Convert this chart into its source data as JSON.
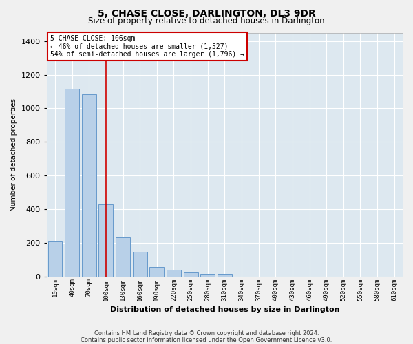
{
  "title": "5, CHASE CLOSE, DARLINGTON, DL3 9DR",
  "subtitle": "Size of property relative to detached houses in Darlington",
  "xlabel": "Distribution of detached houses by size in Darlington",
  "ylabel": "Number of detached properties",
  "footer_line1": "Contains HM Land Registry data © Crown copyright and database right 2024.",
  "footer_line2": "Contains public sector information licensed under the Open Government Licence v3.0.",
  "annotation_title": "5 CHASE CLOSE: 106sqm",
  "annotation_line1": "← 46% of detached houses are smaller (1,527)",
  "annotation_line2": "54% of semi-detached houses are larger (1,796) →",
  "bar_categories": [
    "10sqm",
    "40sqm",
    "70sqm",
    "100sqm",
    "130sqm",
    "160sqm",
    "190sqm",
    "220sqm",
    "250sqm",
    "280sqm",
    "310sqm",
    "340sqm",
    "370sqm",
    "400sqm",
    "430sqm",
    "460sqm",
    "490sqm",
    "520sqm",
    "550sqm",
    "580sqm",
    "610sqm"
  ],
  "bin_counts": [
    207,
    1115,
    1085,
    430,
    232,
    147,
    57,
    38,
    25,
    14,
    14,
    0,
    0,
    0,
    0,
    0,
    0,
    0,
    0,
    0,
    0
  ],
  "bar_color": "#b8d0e8",
  "bar_edge_color": "#6699cc",
  "vline_color": "#cc0000",
  "vline_x_index": 3,
  "annotation_box_color": "#cc0000",
  "background_color": "#dde8f0",
  "grid_color": "#ffffff",
  "ylim": [
    0,
    1450
  ],
  "yticks": [
    0,
    200,
    400,
    600,
    800,
    1000,
    1200,
    1400
  ],
  "title_fontsize": 10,
  "subtitle_fontsize": 8.5
}
